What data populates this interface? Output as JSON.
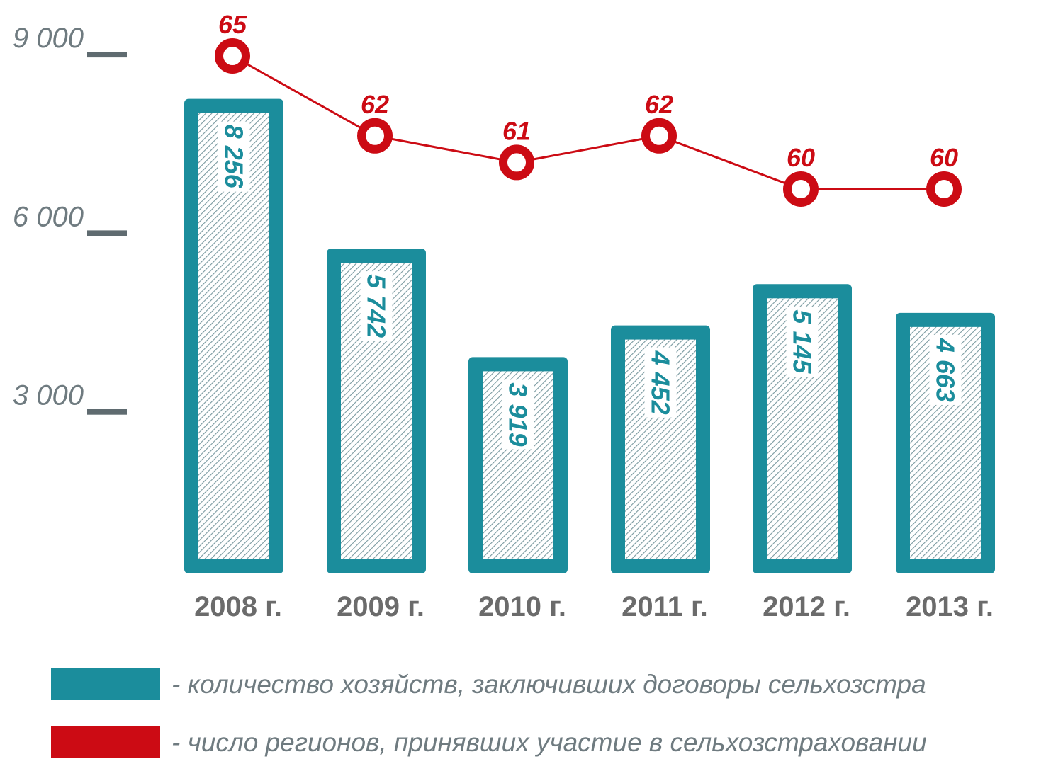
{
  "chart_data": {
    "type": "bar",
    "categories": [
      "2008 г.",
      "2009 г.",
      "2010 г.",
      "2011 г.",
      "2012 г.",
      "2013 г."
    ],
    "bar_series": {
      "name": "- количество хозяйств, заключивших договоры сельхозстра",
      "values": [
        8256,
        5742,
        3919,
        4452,
        5145,
        4663
      ],
      "labels": [
        "8 256",
        "5 742",
        "3 919",
        "4 452",
        "5 145",
        "4 663"
      ],
      "color": "#1b8d9c"
    },
    "line_series": {
      "name": "- число регионов, принявших участие в сельхозстраховании",
      "values": [
        65,
        62,
        61,
        62,
        60,
        60
      ],
      "color": "#cc0b14"
    },
    "y_axis": {
      "ticks": [
        3000,
        6000,
        9000
      ],
      "tick_labels": [
        "3 000",
        "6 000",
        "9 000"
      ],
      "ylim": [
        0,
        9000
      ]
    },
    "grid": false,
    "legend_position": "bottom"
  }
}
